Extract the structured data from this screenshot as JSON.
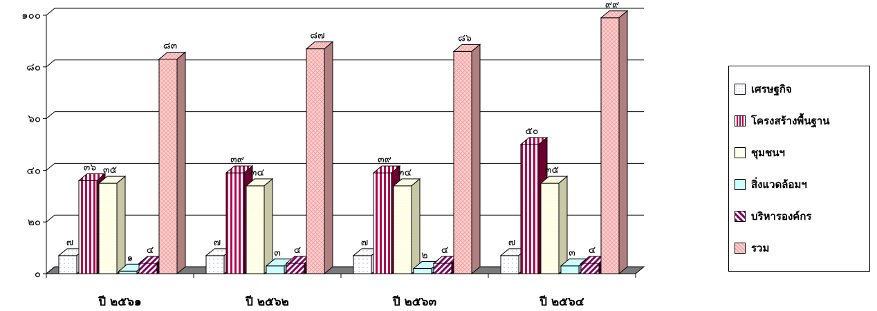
{
  "chart_data": {
    "type": "bar",
    "categories": [
      "ปี ๒๕๖๑",
      "ปี ๒๕๖๒",
      "ปี ๒๕๖๓",
      "ปี ๒๕๖๔"
    ],
    "ylim": [
      0,
      100
    ],
    "yticks": [
      0,
      20,
      40,
      60,
      80,
      100
    ],
    "ytick_labels": [
      "๐",
      "๒๐",
      "๔๐",
      "๖๐",
      "๘๐",
      "๑๐๐"
    ],
    "grid": true,
    "legend_position": "right",
    "series": [
      {
        "name": "เศรษฐกิจ",
        "values": [
          7,
          7,
          7,
          7
        ],
        "labels": [
          "๗",
          "๗",
          "๗",
          "๗"
        ],
        "color": "#ffffff",
        "side": "#dcdcdc",
        "pattern": "dots"
      },
      {
        "name": "โครงสร้างพื้นฐาน",
        "values": [
          36,
          39,
          39,
          50
        ],
        "labels": [
          "๓๖",
          "๓๙",
          "๓๙",
          "๕๐"
        ],
        "color": "#b5004d",
        "side": "#6b0030",
        "pattern": "vstripes"
      },
      {
        "name": "ชุมชนฯ",
        "values": [
          35,
          34,
          34,
          35
        ],
        "labels": [
          "๓๕",
          "๓๔",
          "๓๔",
          "๓๕"
        ],
        "color": "#ffffe0",
        "side": "#c8c8a6",
        "pattern": "hstripes"
      },
      {
        "name": "สิ่งแวดล้อมฯ",
        "values": [
          1,
          3,
          2,
          3
        ],
        "labels": [
          "๑",
          "๓",
          "๒",
          "๓"
        ],
        "color": "#ccffff",
        "side": "#88bbbb",
        "pattern": "none"
      },
      {
        "name": "บริหารองค์กร",
        "values": [
          4,
          4,
          4,
          4
        ],
        "labels": [
          "๔",
          "๔",
          "๔",
          "๔"
        ],
        "color": "#800060",
        "side": "#400030",
        "pattern": "diag"
      },
      {
        "name": "รวม",
        "values": [
          83,
          87,
          86,
          99
        ],
        "labels": [
          "๘๓",
          "๘๗",
          "๘๖",
          "๙๙"
        ],
        "color": "#ffcccc",
        "side": "#b07f7f",
        "pattern": "cross"
      }
    ]
  }
}
